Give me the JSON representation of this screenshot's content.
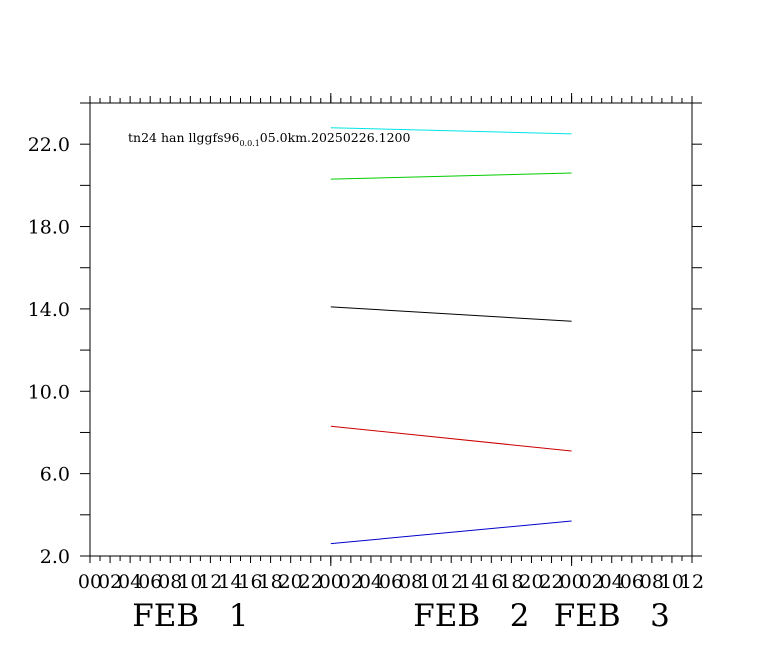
{
  "chart_data": {
    "type": "line",
    "title": {
      "prefix": "tn24 han llggfs96",
      "subscript": "0.0.1",
      "suffix": "05.0km.20250226.1200"
    },
    "x_hours": {
      "min": 0,
      "max": 60,
      "minor_step": 1,
      "label_step": 2
    },
    "x_tick_labels": [
      "00",
      "02",
      "04",
      "06",
      "08",
      "10",
      "12",
      "14",
      "16",
      "18",
      "20",
      "22",
      "00",
      "02",
      "04",
      "06",
      "08",
      "10",
      "12",
      "14",
      "16",
      "18",
      "20",
      "22",
      "00",
      "02",
      "04",
      "06",
      "08",
      "10",
      "12"
    ],
    "x_major_ticks_hours": [
      24,
      48
    ],
    "date_labels": [
      {
        "month": "FEB",
        "day": "1",
        "hour": 12
      },
      {
        "month": "FEB",
        "day": "2",
        "hour": 40
      },
      {
        "month": "FEB",
        "day": "3",
        "hour": 54
      }
    ],
    "y_axis": {
      "min": 2,
      "max": 24,
      "minor_step": 2,
      "labels": [
        "2.0",
        "6.0",
        "10.0",
        "14.0",
        "18.0",
        "22.0"
      ],
      "label_values": [
        2,
        6,
        10,
        14,
        18,
        22
      ]
    },
    "grid": false,
    "series": [
      {
        "color": "#00e5e5",
        "x": [
          24,
          48
        ],
        "values": [
          22.8,
          22.5
        ]
      },
      {
        "color": "#00cc00",
        "x": [
          24,
          48
        ],
        "values": [
          20.3,
          20.6
        ]
      },
      {
        "color": "#000000",
        "x": [
          24,
          48
        ],
        "values": [
          14.1,
          13.4
        ]
      },
      {
        "color": "#cc0000",
        "x": [
          24,
          48
        ],
        "values": [
          8.3,
          7.1
        ]
      },
      {
        "color": "#0000cc",
        "x": [
          24,
          48
        ],
        "values": [
          2.6,
          3.7
        ]
      }
    ]
  }
}
